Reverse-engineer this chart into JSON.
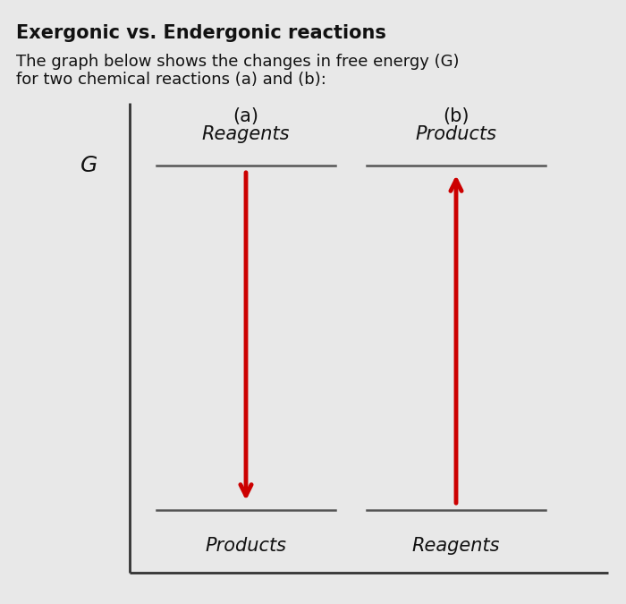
{
  "title": "Exergonic vs. Endergonic reactions",
  "subtitle_line1": "The graph below shows the changes in free energy (G)",
  "subtitle_line2": "for two chemical reactions (a) and (b):",
  "title_fontsize": 15,
  "subtitle_fontsize": 13,
  "background_color": "#e8e8e8",
  "label_a": "(a)",
  "label_b": "(b)",
  "label_G": "G",
  "label_reagents_a": "Reagents",
  "label_products_a": "Products",
  "label_reagents_b": "Reagents",
  "label_products_b": "Products",
  "arrow_color": "#cc0000",
  "line_color": "#555555",
  "axis_color": "#333333",
  "text_color": "#111111",
  "fig_width": 7.0,
  "fig_height": 6.75
}
